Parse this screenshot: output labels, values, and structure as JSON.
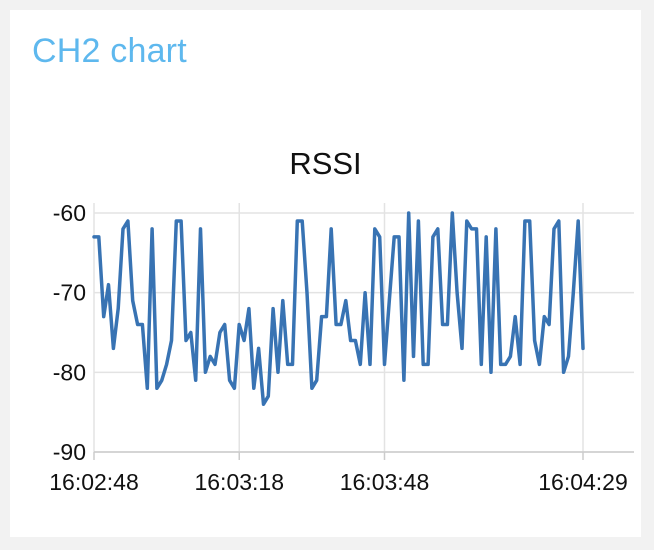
{
  "card": {
    "title": "CH2 chart"
  },
  "chart_data": {
    "type": "line",
    "title": "RSSI",
    "xlabel": "",
    "ylabel": "",
    "ylim": [
      -90,
      -60
    ],
    "x_tick_labels": [
      "16:02:48",
      "16:03:18",
      "16:03:48",
      "16:04:29"
    ],
    "x_tick_seconds": [
      0,
      30,
      60,
      101
    ],
    "y_ticks": [
      -60,
      -70,
      -80,
      -90
    ],
    "x_range_seconds": [
      0,
      101
    ],
    "grid": true,
    "series": [
      {
        "color": "#3873b3",
        "values": [
          -63,
          -63,
          -73,
          -69,
          -77,
          -72,
          -62,
          -61,
          -71,
          -74,
          -74,
          -82,
          -62,
          -82,
          -81,
          -79,
          -76,
          -61,
          -61,
          -76,
          -75,
          -81,
          -62,
          -80,
          -78,
          -79,
          -75,
          -74,
          -81,
          -82,
          -74,
          -76,
          -72,
          -82,
          -77,
          -84,
          -83,
          -72,
          -80,
          -71,
          -79,
          -79,
          -61,
          -61,
          -70,
          -82,
          -81,
          -73,
          -73,
          -62,
          -74,
          -74,
          -71,
          -76,
          -76,
          -79,
          -70,
          -79,
          -62,
          -63,
          -79,
          -71,
          -63,
          -63,
          -81,
          -60,
          -78,
          -61,
          -79,
          -79,
          -63,
          -62,
          -74,
          -74,
          -60,
          -70,
          -77,
          -61,
          -62,
          -62,
          -79,
          -63,
          -80,
          -62,
          -79,
          -79,
          -78,
          -73,
          -79,
          -61,
          -61,
          -76,
          -79,
          -73,
          -74,
          -62,
          -61,
          -80,
          -78,
          -70,
          -61,
          -77
        ]
      }
    ]
  }
}
